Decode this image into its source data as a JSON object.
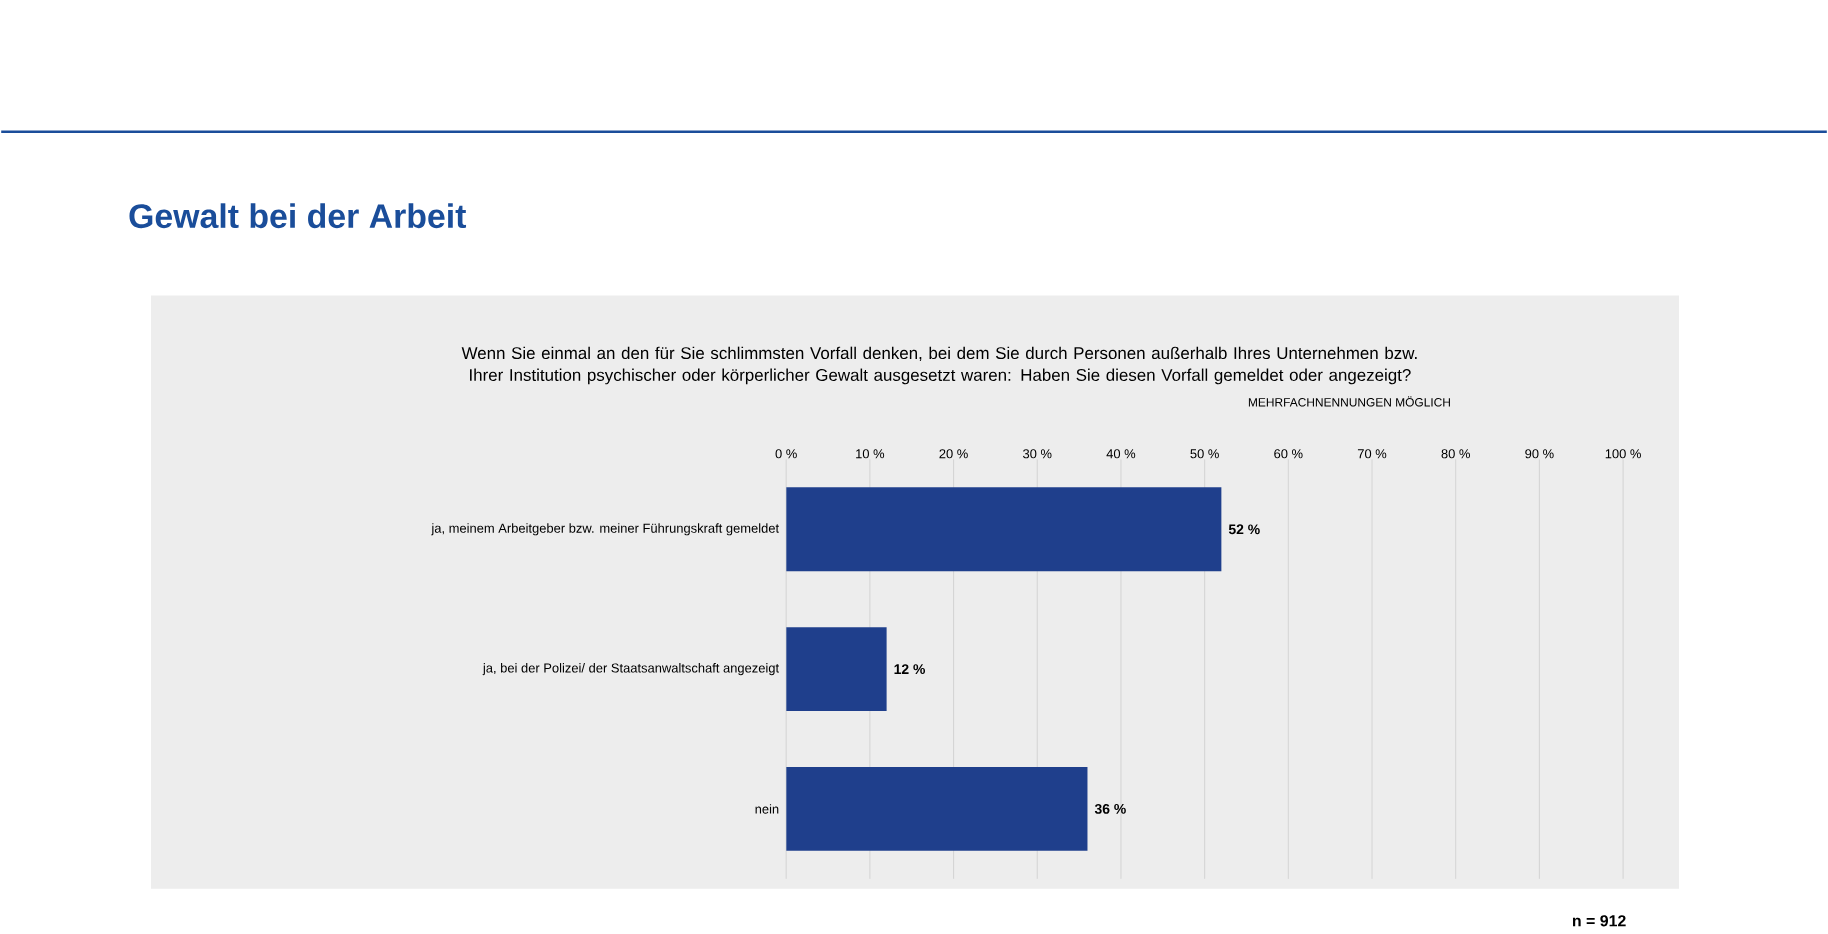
{
  "chart_data": {
    "type": "bar",
    "orientation": "horizontal",
    "title": "Gewalt bei der Arbeit",
    "subtitle": "Wenn Sie einmal an den für Sie schlimmsten Vorfall denken, bei dem Sie durch Personen außerhalb Ihres Unternehmen bzw. Ihrer Institution psychischer oder körperlicher Gewalt ausgesetzt waren: Haben Sie diesen Vorfall gemeldet oder angezeigt?",
    "annotations": [
      "MEHRFACHNENNUNGEN MÖGLICH",
      "n = 912"
    ],
    "categories": [
      "ja, meinem Arbeitgeber bzw. meiner Führungskraft gemeldet",
      "ja, bei der Polizei/ der Staatsanwaltschaft angezeigt",
      "nein"
    ],
    "values": [
      52,
      12,
      36
    ],
    "value_labels": [
      "52 %",
      "12 %",
      "36 %"
    ],
    "color": "#1f3f8c",
    "xlim": [
      0,
      100
    ],
    "xticks": [
      {
        "value": 0,
        "label": "0 %"
      },
      {
        "value": 10,
        "label": "10 %"
      },
      {
        "value": 20,
        "label": "20 %"
      },
      {
        "value": 30,
        "label": "30 %"
      },
      {
        "value": 40,
        "label": "40 %"
      },
      {
        "value": 50,
        "label": "50 %"
      },
      {
        "value": 60,
        "label": "60 %"
      },
      {
        "value": 70,
        "label": "70 %"
      },
      {
        "value": 80,
        "label": "80 %"
      },
      {
        "value": 90,
        "label": "90 %"
      },
      {
        "value": 100,
        "label": "100 %"
      }
    ],
    "grid": "x"
  }
}
